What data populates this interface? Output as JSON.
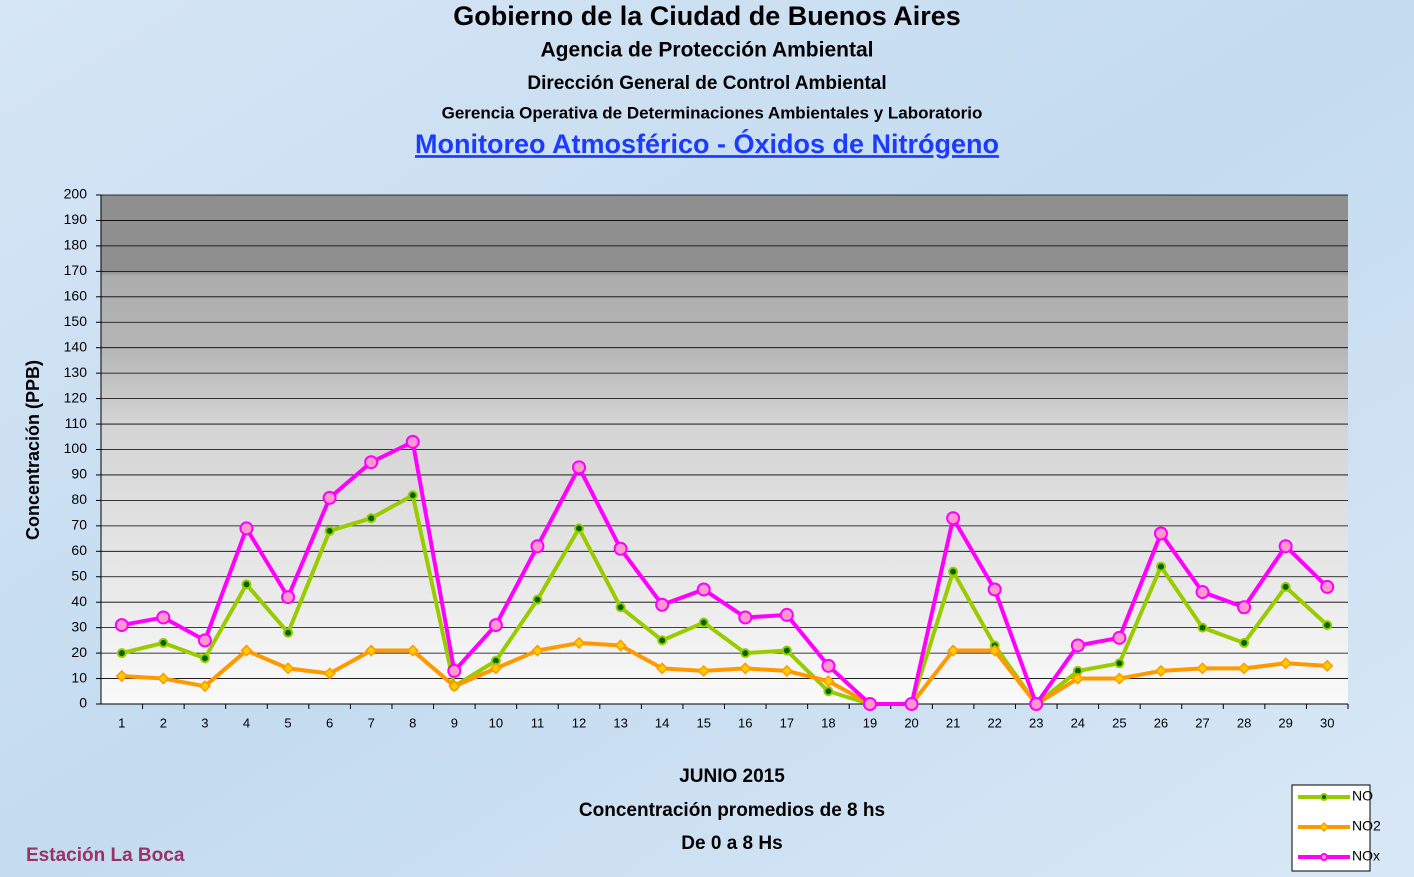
{
  "chart_data": {
    "type": "line",
    "title": "Gobierno de la Ciudad de Buenos Aires",
    "subtitles": [
      "Agencia de Protección Ambiental",
      "Dirección General de Control Ambiental",
      "Gerencia Operativa de  Determinaciones Ambientales y Laboratorio"
    ],
    "link_title": "Monitoreo Atmosférico - Óxidos de Nitrógeno",
    "ylabel": "Concentración  (PPB)",
    "xlabel": [
      "JUNIO 2015",
      "Concentración promedios de 8 hs",
      "De 0 a 8 Hs"
    ],
    "station": "Estación La Boca",
    "categories": [
      "1",
      "2",
      "3",
      "4",
      "5",
      "6",
      "7",
      "8",
      "9",
      "10",
      "11",
      "12",
      "13",
      "14",
      "15",
      "16",
      "17",
      "18",
      "19",
      "20",
      "21",
      "22",
      "23",
      "24",
      "25",
      "26",
      "27",
      "28",
      "29",
      "30"
    ],
    "series": [
      {
        "name": "NO",
        "color": "#99cc00",
        "marker": "circle",
        "marker_color": "#006600",
        "values": [
          20,
          24,
          18,
          47,
          28,
          68,
          73,
          82,
          7,
          17,
          41,
          69,
          38,
          25,
          32,
          20,
          21,
          5,
          0,
          0,
          52,
          23,
          0,
          13,
          16,
          54,
          30,
          24,
          46,
          31
        ]
      },
      {
        "name": "NO2",
        "color": "#ff9900",
        "marker": "diamond",
        "marker_color": "#ffcc00",
        "values": [
          11,
          10,
          7,
          21,
          14,
          12,
          21,
          21,
          7,
          14,
          21,
          24,
          23,
          14,
          13,
          14,
          13,
          9,
          0,
          0,
          21,
          21,
          0,
          10,
          10,
          13,
          14,
          14,
          16,
          15
        ]
      },
      {
        "name": "NOx",
        "color": "#ff00ff",
        "marker": "circle",
        "marker_color": "#ff99cc",
        "values": [
          31,
          34,
          25,
          69,
          42,
          81,
          95,
          103,
          13,
          31,
          62,
          93,
          61,
          39,
          45,
          34,
          35,
          15,
          0,
          0,
          73,
          45,
          0,
          23,
          26,
          67,
          44,
          38,
          62,
          46
        ]
      }
    ],
    "ylim": [
      0,
      200
    ],
    "yticks": [
      0,
      10,
      20,
      30,
      40,
      50,
      60,
      70,
      80,
      90,
      100,
      110,
      120,
      130,
      140,
      150,
      160,
      170,
      180,
      190,
      200
    ],
    "grid": true,
    "legend": "bottom-right"
  }
}
